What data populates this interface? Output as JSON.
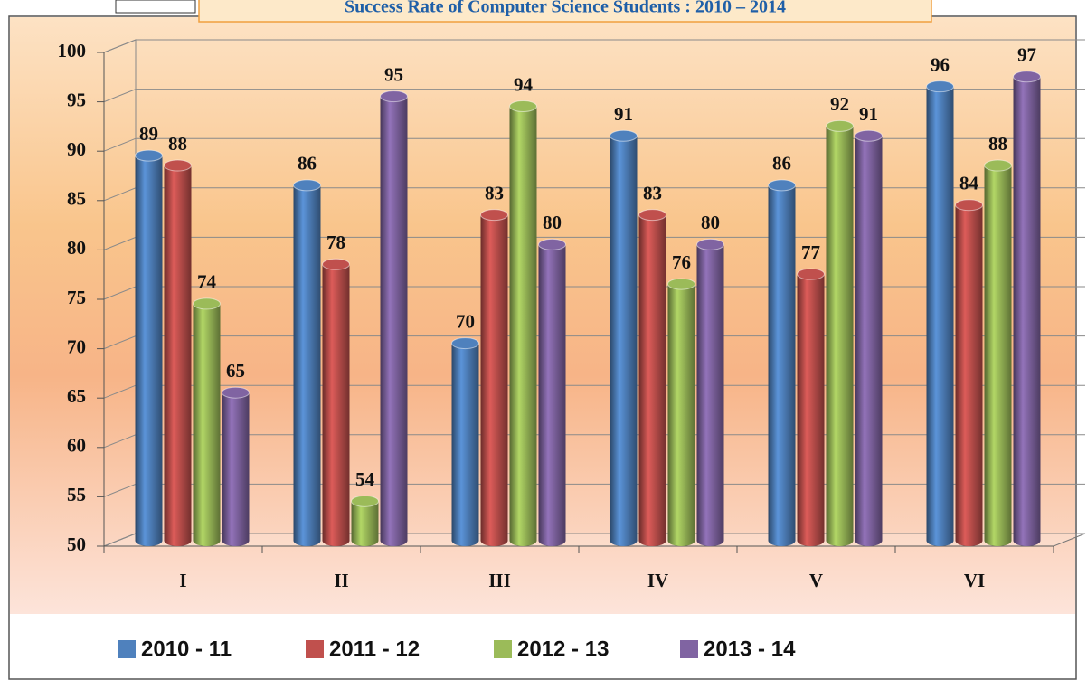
{
  "chart_data": {
    "type": "bar3d",
    "title": "Success Rate of Computer Science  Students : 2010 – 2014",
    "categories": [
      "I",
      "II",
      "III",
      "IV",
      "V",
      "VI"
    ],
    "series": [
      {
        "name": "2010 - 11",
        "color": "#4f81bd",
        "values": [
          89,
          86,
          70,
          91,
          86,
          96
        ]
      },
      {
        "name": "2011 - 12",
        "color": "#c0504d",
        "values": [
          88,
          78,
          83,
          83,
          77,
          84
        ]
      },
      {
        "name": "2012 - 13",
        "color": "#9bbb59",
        "values": [
          74,
          54,
          94,
          76,
          92,
          88
        ]
      },
      {
        "name": "2013 - 14",
        "color": "#8064a2",
        "values": [
          65,
          95,
          80,
          80,
          91,
          97
        ]
      }
    ],
    "ylim": [
      50,
      100
    ],
    "yticks": [
      50,
      55,
      60,
      65,
      70,
      75,
      80,
      85,
      90,
      95,
      100
    ],
    "grid": true,
    "legend": "bottom"
  }
}
